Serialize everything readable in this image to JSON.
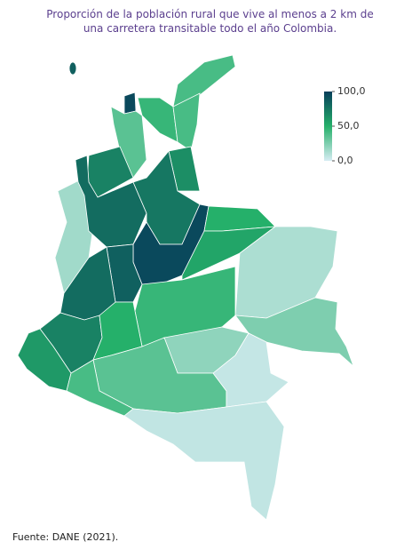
{
  "chart_data": {
    "type": "choropleth",
    "title": "Proporción de la población rural que vive al menos a 2 km de una carretera transitable todo el año Colombia.",
    "values": [
      40,
      45,
      95,
      35,
      40,
      70,
      15,
      80,
      65,
      75,
      95,
      50,
      55,
      12,
      85,
      80,
      45,
      25,
      70,
      60,
      50,
      20,
      35,
      40,
      5,
      6,
      85
    ],
    "colorbar": {
      "colors": [
        "#d6ecf3",
        "#25b06a",
        "#073e5a"
      ],
      "lim": [
        0,
        100
      ],
      "ticks": [
        {
          "value": 0,
          "label": "0,0"
        },
        {
          "value": 50,
          "label": "50,0"
        },
        {
          "value": 100,
          "label": "100,0"
        }
      ]
    },
    "source": "Fuente: DANE (2021)."
  }
}
